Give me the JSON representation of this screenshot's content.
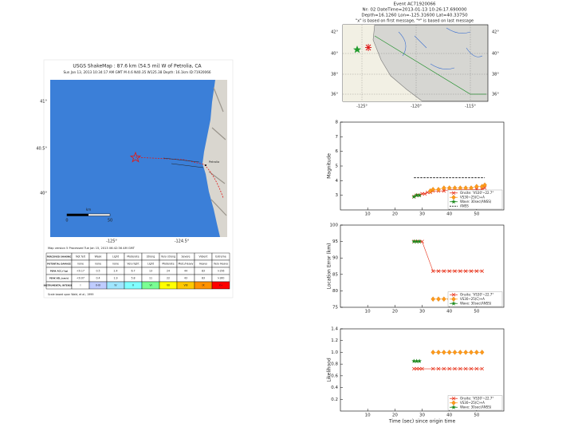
{
  "shakemap": {
    "title": "USGS ShakeMap : 87.6 km (54.5 mi) W of Petrolia, CA",
    "subtitle": "Sun Jan 13, 2013 10:34:17 AM GMT  M 4.6  N40.35 W125.38  Depth: 16.1km  ID:71920066",
    "lat_labels": [
      "41°",
      "40.5°",
      "40°"
    ],
    "lon_labels": [
      "-125°",
      "-124.5°"
    ],
    "scale_unit": "km",
    "scale_ticks": [
      "0",
      "50"
    ],
    "town": "Petrolia",
    "processed": "Map version 5 Processed Tue Jan 15, 2013 06:42:36 AM GMT",
    "legend": {
      "rows": [
        [
          "PERCEIVED SHAKING",
          "Not felt",
          "Weak",
          "Light",
          "Moderate",
          "Strong",
          "Very strong",
          "Severe",
          "Violent",
          "Extreme"
        ],
        [
          "POTENTIAL DAMAGE",
          "none",
          "none",
          "none",
          "Very light",
          "Light",
          "Moderate",
          "Mod./Heavy",
          "Heavy",
          "Very Heavy"
        ],
        [
          "PEAK ACC.(%g)",
          "<0.17",
          "0.5",
          "2.4",
          "6.7",
          "13",
          "24",
          "44",
          "83",
          ">156"
        ],
        [
          "PEAK VEL.(cm/s)",
          "<0.07",
          "0.4",
          "1.9",
          "5.8",
          "11",
          "22",
          "43",
          "83",
          ">160"
        ],
        [
          "INSTRUMENTAL INTENSITY",
          "I",
          "II-III",
          "IV",
          "V",
          "VI",
          "VII",
          "VIII",
          "IX",
          "X+"
        ]
      ],
      "colors": [
        "#ffffff",
        "#bfccff",
        "#a0e6ff",
        "#80ffff",
        "#7aff93",
        "#ffff00",
        "#ffc800",
        "#ff9100",
        "#ff0000"
      ]
    },
    "footnote": "Scale based upon Wald, et al.; 1999"
  },
  "event_map": {
    "title_lines": [
      "Event AC71920066",
      "Nr: 02 DateTime=2013-01-13 10:26:17.690000",
      "Depth=16.1260 Lon=-125.31600 Lat=40.33750",
      "\"x\" is based on first message, \"*\" is based on last message"
    ],
    "lat_labels": [
      "42°",
      "40°",
      "38°",
      "36°"
    ],
    "lon_labels": [
      "-125°",
      "-120°",
      "-115°"
    ]
  },
  "chart_data": [
    {
      "type": "line",
      "ylabel": "Magnitude",
      "xlim": [
        0,
        60
      ],
      "xticks": [
        10,
        20,
        30,
        40,
        50
      ],
      "ylim": [
        2,
        8
      ],
      "yticks": [
        3,
        4,
        5,
        6,
        7,
        8
      ],
      "legend": "lower right",
      "series": [
        {
          "name": "Onsite: 'VS30'~22.7°",
          "color": "#e8341c",
          "marker": "x",
          "x": [
            27,
            28,
            29,
            30,
            31,
            32,
            33,
            34,
            36,
            38,
            40,
            42,
            44,
            46,
            48,
            50,
            52,
            53
          ],
          "values": [
            2.9,
            3.0,
            3.0,
            3.1,
            3.1,
            3.2,
            3.2,
            3.3,
            3.3,
            3.3,
            3.4,
            3.4,
            3.4,
            3.4,
            3.4,
            3.4,
            3.4,
            3.5
          ]
        },
        {
          "name": "VS30~25(C)+A",
          "color": "#ff9a1a",
          "marker": "diamond",
          "x": [
            33,
            34,
            36,
            38,
            40,
            42,
            44,
            46,
            48,
            50,
            52,
            53
          ],
          "values": [
            3.3,
            3.4,
            3.4,
            3.5,
            3.5,
            3.5,
            3.5,
            3.5,
            3.5,
            3.6,
            3.6,
            3.7
          ]
        },
        {
          "name": "Wave: 30sec(ANSS)",
          "color": "#1e8a1e",
          "marker": "star",
          "x": [
            27,
            28,
            29
          ],
          "values": [
            2.9,
            3.0,
            3.0
          ]
        },
        {
          "name": "ANSS",
          "color": "#000000",
          "marker": "none",
          "dash": true,
          "x": [
            27,
            53
          ],
          "values": [
            4.2,
            4.2
          ]
        }
      ]
    },
    {
      "type": "line",
      "ylabel": "Location Error (km)",
      "xlim": [
        0,
        60
      ],
      "xticks": [
        10,
        20,
        30,
        40,
        50
      ],
      "ylim": [
        75,
        100
      ],
      "yticks": [
        75,
        80,
        85,
        90,
        95,
        100
      ],
      "legend": "lower right",
      "series": [
        {
          "name": "Onsite: 'VS30'~22.7°",
          "color": "#e8341c",
          "marker": "x",
          "x": [
            27,
            28,
            29,
            30,
            34,
            36,
            38,
            40,
            42,
            44,
            46,
            48,
            50,
            52
          ],
          "values": [
            95,
            95,
            95,
            95,
            86,
            86,
            86,
            86,
            86,
            86,
            86,
            86,
            86,
            86
          ]
        },
        {
          "name": "VS30~25(C)+A",
          "color": "#ff9a1a",
          "marker": "diamond",
          "x": [
            34,
            36,
            38,
            40,
            42,
            44,
            46,
            48,
            50,
            52
          ],
          "values": [
            77.5,
            77.5,
            77.5,
            77.5,
            77.5,
            77.5,
            77.5,
            77.5,
            77.5,
            77.5
          ]
        },
        {
          "name": "Wave: 30sec(ANSS)",
          "color": "#1e8a1e",
          "marker": "star",
          "x": [
            27,
            28,
            29
          ],
          "values": [
            95,
            95,
            95
          ]
        }
      ]
    },
    {
      "type": "line",
      "ylabel": "Likelihood",
      "xlabel": "Time (sec) since origin time",
      "xlim": [
        0,
        60
      ],
      "xticks": [
        10,
        20,
        30,
        40,
        50
      ],
      "ylim": [
        0,
        1.4
      ],
      "yticks": [
        0.2,
        0.4,
        0.6,
        0.8,
        {
          "value": 1,
          "label": "1.0"
        },
        1.2,
        1.4
      ],
      "legend": "lower right",
      "series": [
        {
          "name": "Onsite: 'VS30'~22.7°",
          "color": "#e8341c",
          "marker": "x",
          "x": [
            27,
            28,
            29,
            30,
            34,
            36,
            38,
            40,
            42,
            44,
            46,
            48,
            50,
            52
          ],
          "values": [
            0.72,
            0.72,
            0.72,
            0.72,
            0.72,
            0.72,
            0.72,
            0.72,
            0.72,
            0.72,
            0.72,
            0.72,
            0.72,
            0.72
          ]
        },
        {
          "name": "VS30~25(C)+A",
          "color": "#ff9a1a",
          "marker": "diamond",
          "x": [
            34,
            36,
            38,
            40,
            42,
            44,
            46,
            48,
            50,
            52
          ],
          "values": [
            1.0,
            1.0,
            1.0,
            1.0,
            1.0,
            1.0,
            1.0,
            1.0,
            1.0,
            1.0
          ]
        },
        {
          "name": "Wave: 30sec(ANSS)",
          "color": "#1e8a1e",
          "marker": "star",
          "x": [
            27,
            28,
            29
          ],
          "values": [
            0.85,
            0.85,
            0.85
          ]
        }
      ]
    }
  ]
}
